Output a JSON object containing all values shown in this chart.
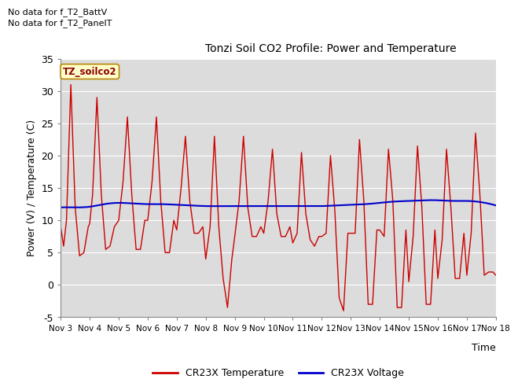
{
  "title": "Tonzi Soil CO2 Profile: Power and Temperature",
  "ylabel": "Power (V) / Temperature (C)",
  "xlabel": "Time",
  "ylim": [
    -5,
    35
  ],
  "xlim": [
    0,
    15
  ],
  "background_color": "#dcdcdc",
  "grid_color": "white",
  "text_no_data_1": "No data for f_T2_BattV",
  "text_no_data_2": "No data for f_T2_PanelT",
  "legend_label_1": "TZ_soilco2",
  "legend_label_2": "CR23X Temperature",
  "legend_label_3": "CR23X Voltage",
  "xtick_labels": [
    "Nov 3",
    "Nov 4",
    "Nov 5",
    "Nov 6",
    "Nov 7",
    "Nov 8",
    "Nov 9",
    "Nov 10",
    "Nov 11",
    "Nov 12",
    "Nov 13",
    "Nov 14",
    "Nov 15",
    "Nov 16",
    "Nov 17",
    "Nov 18"
  ],
  "ytick_values": [
    -5,
    0,
    5,
    10,
    15,
    20,
    25,
    30,
    35
  ],
  "red_color": "#cc0000",
  "blue_color": "#0000cc",
  "tx": [
    0.0,
    0.1,
    0.2,
    0.35,
    0.5,
    0.65,
    0.8,
    0.95,
    1.0,
    1.1,
    1.25,
    1.4,
    1.55,
    1.7,
    1.85,
    2.0,
    2.15,
    2.3,
    2.45,
    2.6,
    2.75,
    2.9,
    3.0,
    3.15,
    3.3,
    3.45,
    3.6,
    3.75,
    3.9,
    4.0,
    4.15,
    4.3,
    4.45,
    4.6,
    4.75,
    4.9,
    5.0,
    5.15,
    5.3,
    5.45,
    5.6,
    5.75,
    5.9,
    6.0,
    6.15,
    6.3,
    6.45,
    6.6,
    6.75,
    6.9,
    7.0,
    7.15,
    7.3,
    7.45,
    7.6,
    7.75,
    7.9,
    8.0,
    8.15,
    8.3,
    8.45,
    8.6,
    8.75,
    8.9,
    9.0,
    9.15,
    9.3,
    9.45,
    9.6,
    9.75,
    9.9,
    10.0,
    10.15,
    10.3,
    10.45,
    10.6,
    10.75,
    10.9,
    11.0,
    11.15,
    11.3,
    11.45,
    11.6,
    11.75,
    11.9,
    12.0,
    12.15,
    12.3,
    12.45,
    12.6,
    12.75,
    12.9,
    13.0,
    13.15,
    13.3,
    13.45,
    13.6,
    13.75,
    13.9,
    14.0,
    14.15,
    14.3,
    14.45,
    14.6,
    14.75,
    14.9,
    15.0
  ],
  "ty": [
    9.0,
    6.0,
    10.0,
    31.0,
    12.0,
    4.5,
    5.0,
    9.0,
    9.5,
    14.0,
    29.0,
    14.0,
    5.5,
    6.0,
    9.0,
    10.0,
    16.0,
    26.0,
    14.0,
    5.5,
    5.5,
    10.0,
    10.0,
    16.0,
    26.0,
    13.0,
    5.0,
    5.0,
    10.0,
    8.5,
    15.0,
    23.0,
    13.0,
    8.0,
    8.0,
    9.0,
    4.0,
    9.0,
    23.0,
    9.0,
    1.0,
    -3.5,
    4.0,
    7.5,
    13.0,
    23.0,
    12.0,
    7.5,
    7.5,
    9.0,
    8.0,
    13.0,
    21.0,
    11.0,
    7.5,
    7.5,
    9.0,
    6.5,
    8.0,
    20.5,
    11.0,
    7.0,
    6.0,
    7.5,
    7.5,
    8.0,
    20.0,
    11.5,
    -2.0,
    -4.0,
    8.0,
    8.0,
    8.0,
    22.5,
    13.0,
    -3.0,
    -3.0,
    8.5,
    8.5,
    7.5,
    21.0,
    13.0,
    -3.5,
    -3.5,
    8.5,
    0.5,
    7.5,
    21.5,
    12.0,
    -3.0,
    -3.0,
    8.5,
    1.0,
    7.0,
    21.0,
    12.0,
    1.0,
    1.0,
    8.0,
    1.5,
    8.0,
    23.5,
    14.0,
    1.5,
    2.0,
    2.0,
    1.5
  ],
  "vx": [
    0.0,
    0.5,
    1.0,
    1.5,
    2.0,
    2.5,
    3.0,
    3.5,
    4.0,
    4.5,
    5.0,
    5.5,
    6.0,
    6.5,
    7.0,
    7.5,
    8.0,
    8.5,
    9.0,
    9.5,
    10.0,
    10.5,
    11.0,
    11.5,
    12.0,
    12.5,
    13.0,
    13.5,
    14.0,
    14.5,
    15.0
  ],
  "vy": [
    12.0,
    12.0,
    12.1,
    12.5,
    12.7,
    12.6,
    12.5,
    12.5,
    12.4,
    12.3,
    12.2,
    12.2,
    12.2,
    12.2,
    12.2,
    12.2,
    12.2,
    12.2,
    12.2,
    12.3,
    12.4,
    12.5,
    12.7,
    12.9,
    13.0,
    13.1,
    13.1,
    13.0,
    13.0,
    12.8,
    12.3
  ]
}
